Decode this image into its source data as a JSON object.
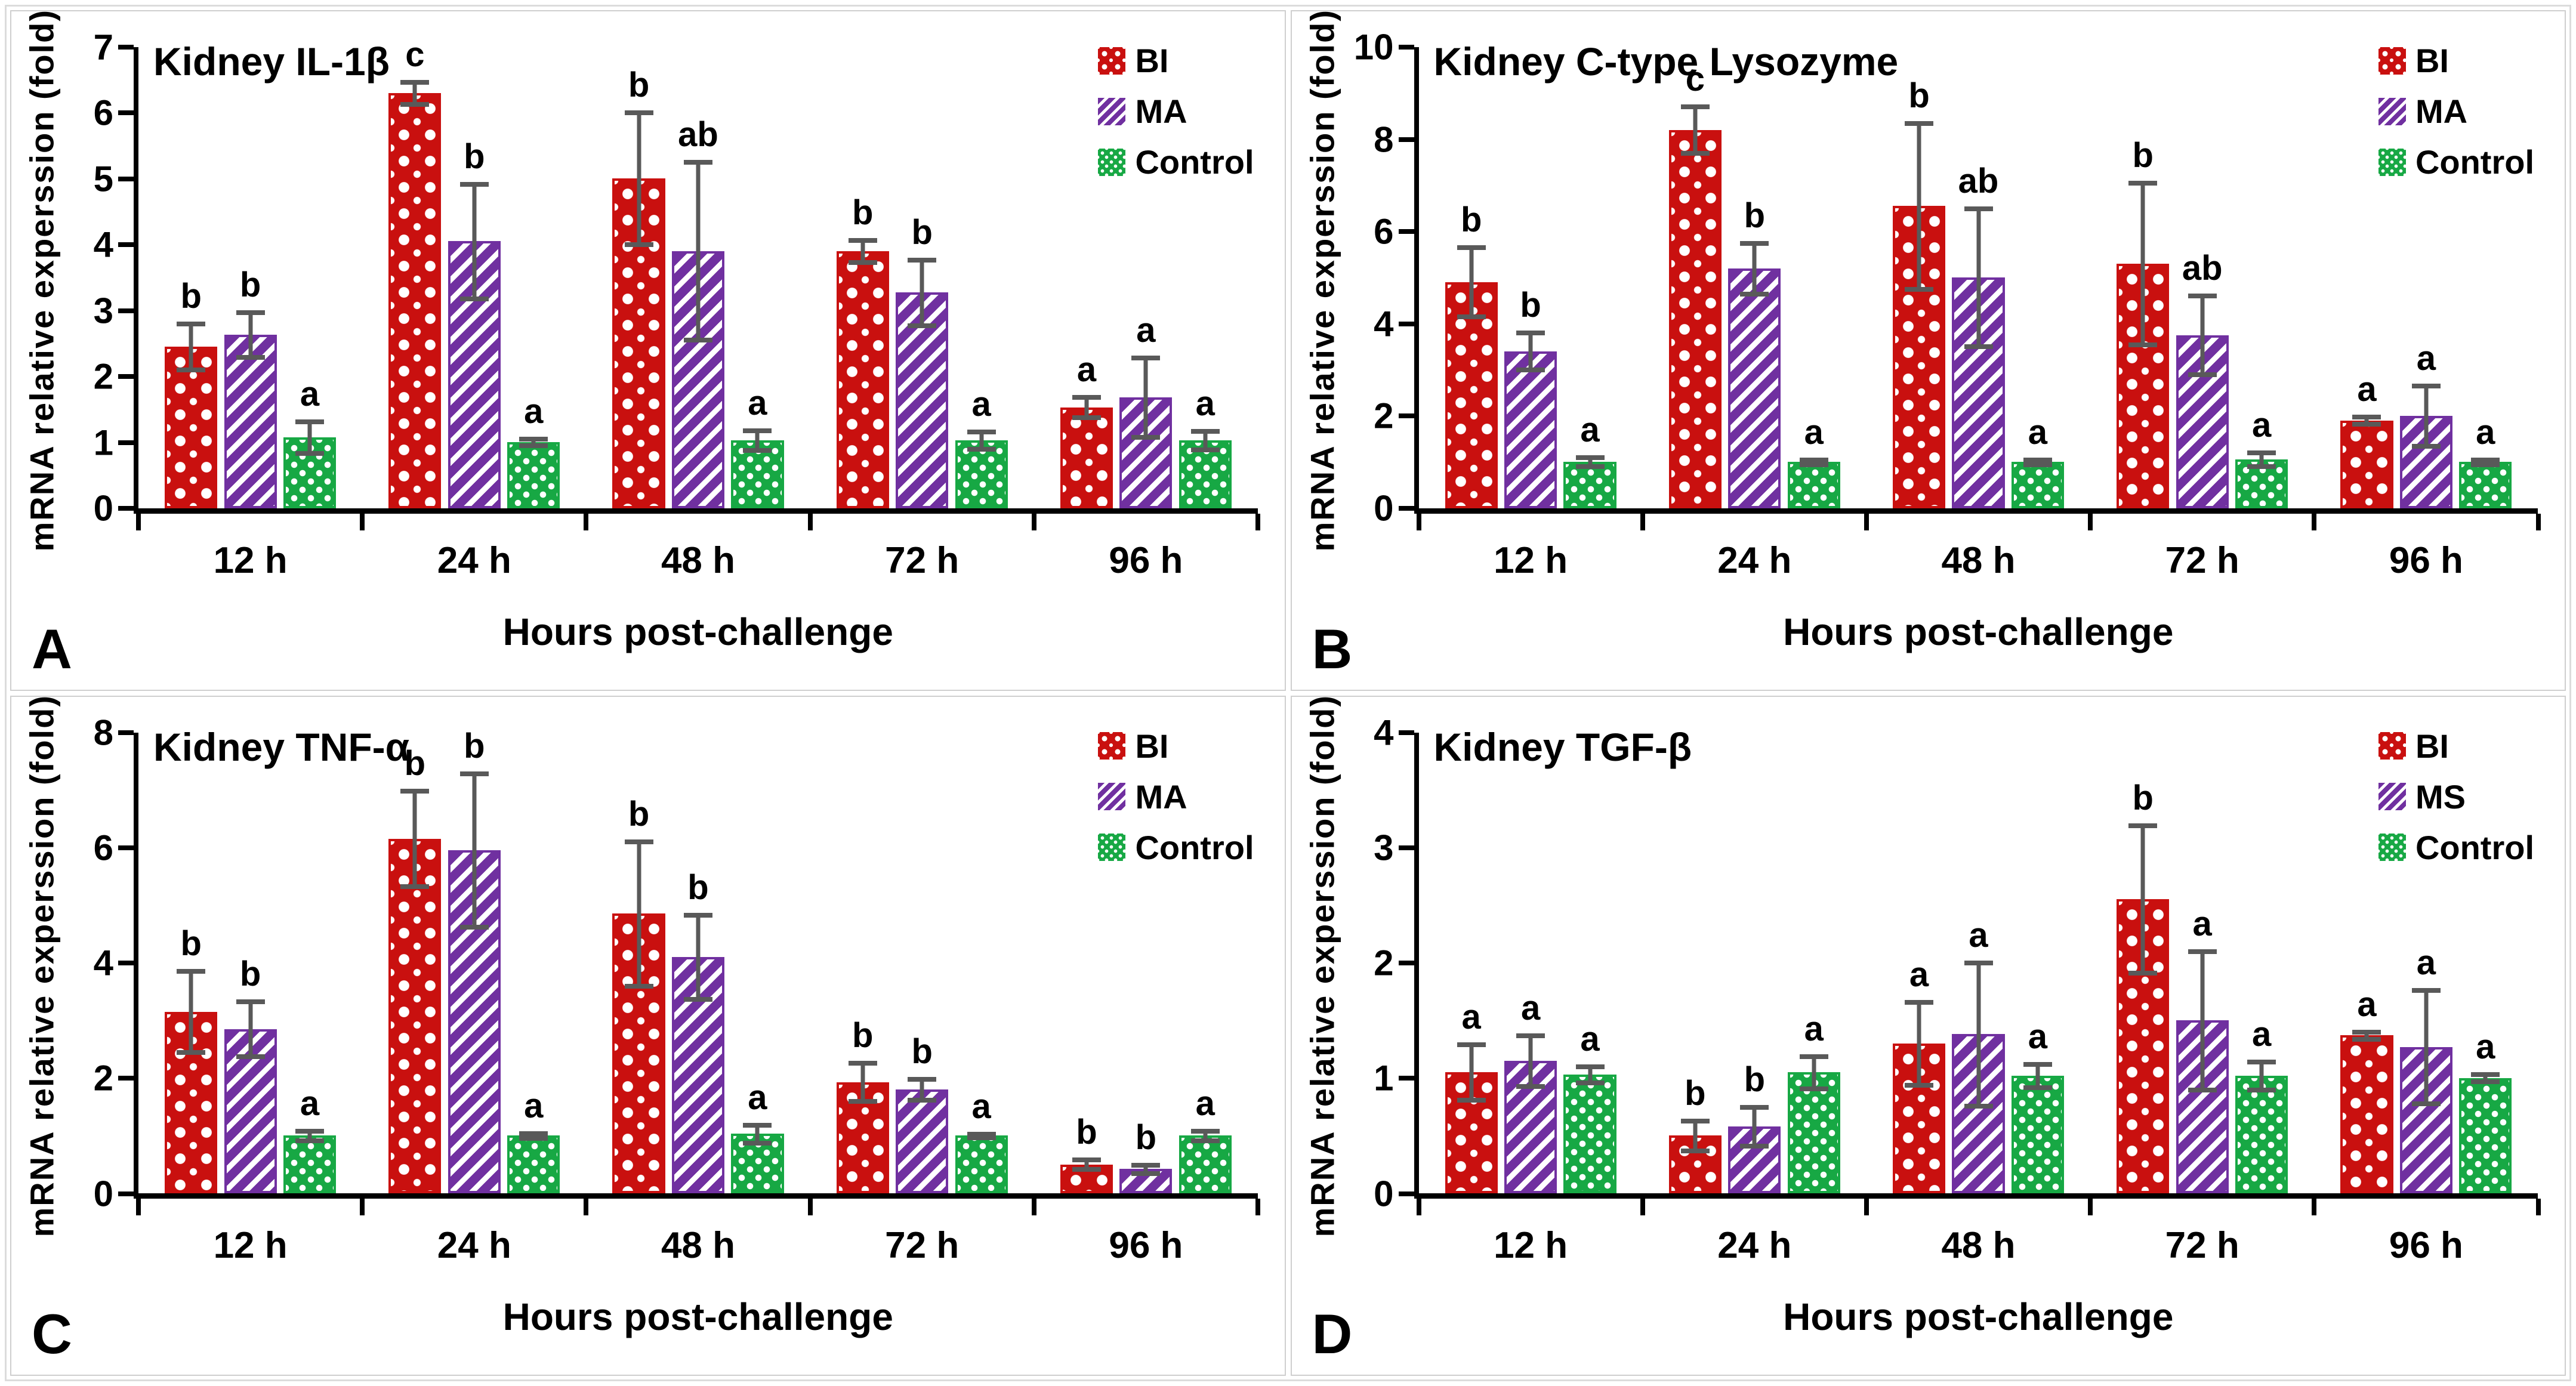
{
  "figure": {
    "background": "#ffffff",
    "panel_border_color": "#cfcfcf",
    "axis_color": "#000000",
    "text_color": "#000000",
    "error_bar_color": "#595959",
    "series_colors": {
      "BI": "#c9100f",
      "MA": "#7030a0",
      "MS": "#7030a0",
      "Control": "#17a844"
    }
  },
  "chart_data": [
    {
      "type": "bar",
      "panel_letter": "A",
      "title": "Kidney IL-1β",
      "xlabel": "Hours post-challenge",
      "ylabel": "mRNA relative experssion (fold)",
      "categories": [
        "12 h",
        "24 h",
        "48 h",
        "72 h",
        "96 h"
      ],
      "ylim": [
        0,
        7
      ],
      "yticks": [
        0,
        1,
        2,
        3,
        4,
        5,
        6,
        7
      ],
      "grid": false,
      "legend_position": "top-right",
      "series": [
        {
          "name": "BI",
          "color": "#c9100f",
          "pattern": "red-checker",
          "values": [
            2.45,
            6.3,
            5.0,
            3.9,
            1.53
          ],
          "errors": [
            0.35,
            0.17,
            1.0,
            0.17,
            0.15
          ],
          "sig_letters": [
            "b",
            "c",
            "b",
            "b",
            "a"
          ]
        },
        {
          "name": "MA",
          "color": "#7030a0",
          "pattern": "purple-diagonal",
          "values": [
            2.63,
            4.05,
            3.9,
            3.27,
            1.68
          ],
          "errors": [
            0.34,
            0.87,
            1.35,
            0.5,
            0.6
          ],
          "sig_letters": [
            "b",
            "b",
            "ab",
            "b",
            "a"
          ]
        },
        {
          "name": "Control",
          "color": "#17a844",
          "pattern": "green-dots",
          "values": [
            1.07,
            1.0,
            1.03,
            1.03,
            1.03
          ],
          "errors": [
            0.24,
            0.05,
            0.15,
            0.13,
            0.14
          ],
          "sig_letters": [
            "a",
            "a",
            "a",
            "a",
            "a"
          ]
        }
      ]
    },
    {
      "type": "bar",
      "panel_letter": "B",
      "title": "Kidney C-type Lysozyme",
      "xlabel": "Hours post-challenge",
      "ylabel": "mRNA relative experssion (fold)",
      "categories": [
        "12 h",
        "24 h",
        "48 h",
        "72 h",
        "96 h"
      ],
      "ylim": [
        0,
        10
      ],
      "yticks": [
        0,
        2,
        4,
        6,
        8,
        10
      ],
      "grid": false,
      "legend_position": "top-right",
      "series": [
        {
          "name": "BI",
          "color": "#c9100f",
          "pattern": "red-checker",
          "values": [
            4.9,
            8.2,
            6.55,
            5.3,
            1.9
          ],
          "errors": [
            0.75,
            0.5,
            1.8,
            1.75,
            0.08
          ],
          "sig_letters": [
            "b",
            "c",
            "b",
            "b",
            "a"
          ]
        },
        {
          "name": "MA",
          "color": "#7030a0",
          "pattern": "purple-diagonal",
          "values": [
            3.4,
            5.2,
            5.0,
            3.75,
            2.0
          ],
          "errors": [
            0.4,
            0.55,
            1.5,
            0.85,
            0.65
          ],
          "sig_letters": [
            "b",
            "b",
            "ab",
            "ab",
            "a"
          ]
        },
        {
          "name": "Control",
          "color": "#17a844",
          "pattern": "green-dots",
          "values": [
            1.0,
            1.0,
            1.0,
            1.05,
            1.0
          ],
          "errors": [
            0.1,
            0.05,
            0.05,
            0.15,
            0.05
          ],
          "sig_letters": [
            "a",
            "a",
            "a",
            "a",
            "a"
          ]
        }
      ]
    },
    {
      "type": "bar",
      "panel_letter": "C",
      "title": "Kidney TNF-α",
      "xlabel": "Hours post-challenge",
      "ylabel": "mRNA relative experssion (fold)",
      "categories": [
        "12 h",
        "24 h",
        "48 h",
        "72 h",
        "96 h"
      ],
      "ylim": [
        0,
        8
      ],
      "yticks": [
        0,
        2,
        4,
        6,
        8
      ],
      "grid": false,
      "legend_position": "top-right",
      "series": [
        {
          "name": "BI",
          "color": "#c9100f",
          "pattern": "red-checker",
          "values": [
            3.15,
            6.15,
            4.85,
            1.93,
            0.5
          ],
          "errors": [
            0.7,
            0.83,
            1.25,
            0.33,
            0.08
          ],
          "sig_letters": [
            "b",
            "b",
            "b",
            "b",
            "b"
          ]
        },
        {
          "name": "MA",
          "color": "#7030a0",
          "pattern": "purple-diagonal",
          "values": [
            2.85,
            5.95,
            4.1,
            1.8,
            0.42
          ],
          "errors": [
            0.48,
            1.33,
            0.73,
            0.18,
            0.07
          ],
          "sig_letters": [
            "b",
            "b",
            "b",
            "b",
            "b"
          ]
        },
        {
          "name": "Control",
          "color": "#17a844",
          "pattern": "green-dots",
          "values": [
            1.0,
            1.0,
            1.03,
            1.0,
            1.0
          ],
          "errors": [
            0.08,
            0.04,
            0.16,
            0.03,
            0.08
          ],
          "sig_letters": [
            "a",
            "a",
            "a",
            "a",
            "a"
          ]
        }
      ]
    },
    {
      "type": "bar",
      "panel_letter": "D",
      "title": "Kidney TGF-β",
      "xlabel": "Hours post-challenge",
      "ylabel": "mRNA relative experssion (fold)",
      "categories": [
        "12 h",
        "24 h",
        "48 h",
        "72 h",
        "96 h"
      ],
      "ylim": [
        0,
        4
      ],
      "yticks": [
        0,
        1,
        2,
        3,
        4
      ],
      "grid": false,
      "legend_position": "top-right",
      "series": [
        {
          "name": "BI",
          "color": "#c9100f",
          "pattern": "red-checker",
          "values": [
            1.05,
            0.5,
            1.3,
            2.55,
            1.37
          ],
          "errors": [
            0.24,
            0.13,
            0.36,
            0.64,
            0.03
          ],
          "sig_letters": [
            "a",
            "b",
            "a",
            "b",
            "a"
          ]
        },
        {
          "name": "MS",
          "color": "#7030a0",
          "pattern": "purple-diagonal",
          "values": [
            1.15,
            0.58,
            1.38,
            1.5,
            1.27
          ],
          "errors": [
            0.22,
            0.17,
            0.62,
            0.6,
            0.49
          ],
          "sig_letters": [
            "a",
            "b",
            "a",
            "a",
            "a"
          ]
        },
        {
          "name": "Control",
          "color": "#17a844",
          "pattern": "green-dots",
          "values": [
            1.03,
            1.05,
            1.02,
            1.02,
            1.0
          ],
          "errors": [
            0.07,
            0.14,
            0.1,
            0.12,
            0.03
          ],
          "sig_letters": [
            "a",
            "a",
            "a",
            "a",
            "a"
          ]
        }
      ]
    }
  ]
}
